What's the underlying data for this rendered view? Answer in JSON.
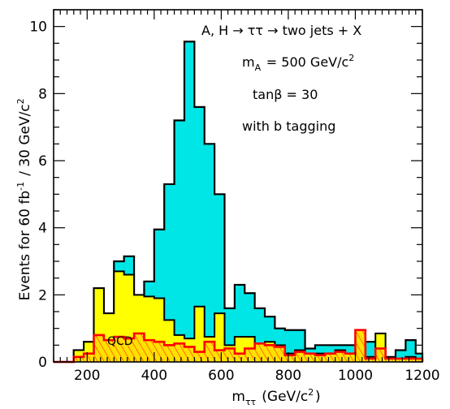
{
  "chart_data": {
    "type": "histogram-step",
    "xlabel": "m_ττ (GeV/c²)",
    "ylabel": "Events for 60 fb⁻¹ / 30 GeV/c²",
    "xlim": [
      100,
      1200
    ],
    "ylim": [
      0,
      10.5
    ],
    "x_ticks": [
      200,
      400,
      600,
      800,
      1000,
      1200
    ],
    "y_ticks": [
      0,
      2,
      4,
      6,
      8,
      10
    ],
    "bin_edges": [
      100,
      130,
      160,
      190,
      220,
      250,
      280,
      310,
      340,
      370,
      400,
      430,
      460,
      490,
      520,
      550,
      580,
      610,
      640,
      670,
      700,
      730,
      760,
      790,
      820,
      850,
      880,
      910,
      940,
      970,
      1000,
      1030,
      1060,
      1090,
      1120,
      1150,
      1180,
      1200
    ],
    "series": [
      {
        "name": "A, H → ττ signal",
        "color": "#00e5e5",
        "values": [
          0,
          0,
          0.35,
          0.6,
          2.2,
          1.45,
          3.0,
          3.15,
          1.6,
          2.4,
          3.95,
          5.3,
          7.2,
          9.55,
          7.6,
          6.5,
          5.0,
          1.6,
          2.3,
          2.05,
          1.6,
          1.35,
          1.0,
          0.95,
          0.95,
          0.4,
          0.5,
          0.5,
          0.5,
          0.5,
          0.6,
          0.6,
          0.35,
          0.15,
          0.35,
          0.65,
          0.25
        ]
      },
      {
        "name": "yellow background",
        "color": "#ffff00",
        "values": [
          0,
          0,
          0.35,
          0.6,
          2.2,
          1.45,
          2.7,
          2.6,
          2.0,
          1.95,
          1.9,
          1.25,
          0.8,
          0.7,
          1.65,
          0.75,
          1.45,
          0.5,
          0.75,
          0.75,
          0.5,
          0.6,
          0.5,
          0.25,
          0.35,
          0.25,
          0.25,
          0.25,
          0.35,
          0.25,
          0.95,
          0.15,
          0.85,
          0.1,
          0.1,
          0.15,
          0.1
        ]
      },
      {
        "name": "QCD",
        "color": "#ff0000",
        "values": [
          0,
          0,
          0.15,
          0.25,
          0.8,
          0.65,
          0.75,
          0.7,
          0.85,
          0.65,
          0.6,
          0.5,
          0.55,
          0.45,
          0.3,
          0.6,
          0.35,
          0.4,
          0.25,
          0.4,
          0.55,
          0.5,
          0.45,
          0.2,
          0.3,
          0.25,
          0.2,
          0.25,
          0.3,
          0.25,
          0.95,
          0.1,
          0.4,
          0.1,
          0.1,
          0.1,
          0.1
        ]
      }
    ],
    "annotations": {
      "process": "A, H → ττ → two jets + X",
      "mass": "m_A = 500 GeV/c²",
      "tanb": "tanβ = 30",
      "btag": "with b tagging",
      "qcd_label": "QCD"
    }
  }
}
